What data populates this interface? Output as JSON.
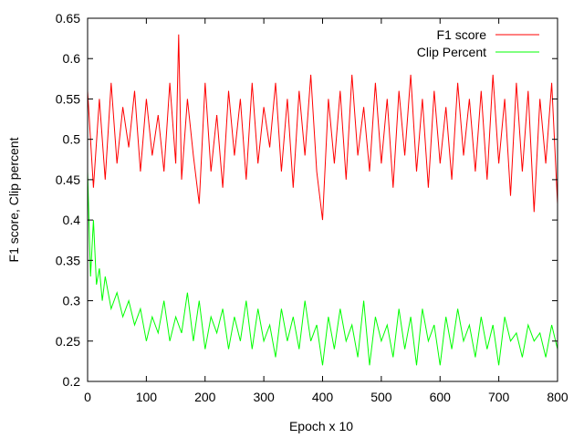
{
  "chart_data": {
    "type": "line",
    "xlabel": "Epoch x 10",
    "ylabel": "F1 score, Clip percent",
    "xlim": [
      0,
      800
    ],
    "ylim": [
      0.2,
      0.65
    ],
    "xticks": [
      0,
      100,
      200,
      300,
      400,
      500,
      600,
      700,
      800
    ],
    "yticks": [
      0.2,
      0.25,
      0.3,
      0.35,
      0.4,
      0.45,
      0.5,
      0.55,
      0.6,
      0.65
    ],
    "grid": false,
    "legend_position": "top-right",
    "series": [
      {
        "name": "F1 score",
        "color": "#ff0000",
        "x": [
          0,
          10,
          20,
          30,
          40,
          50,
          60,
          70,
          80,
          90,
          100,
          110,
          120,
          130,
          140,
          150,
          155,
          160,
          170,
          180,
          190,
          200,
          210,
          220,
          230,
          240,
          250,
          260,
          270,
          280,
          290,
          300,
          310,
          320,
          330,
          340,
          350,
          360,
          370,
          380,
          390,
          400,
          410,
          420,
          430,
          440,
          450,
          460,
          470,
          480,
          490,
          500,
          510,
          520,
          530,
          540,
          550,
          560,
          570,
          580,
          590,
          600,
          610,
          620,
          630,
          640,
          650,
          660,
          670,
          680,
          690,
          700,
          710,
          720,
          730,
          740,
          750,
          760,
          770,
          780,
          790,
          800
        ],
        "values": [
          0.56,
          0.44,
          0.55,
          0.45,
          0.57,
          0.47,
          0.54,
          0.49,
          0.56,
          0.46,
          0.55,
          0.48,
          0.53,
          0.46,
          0.57,
          0.47,
          0.63,
          0.45,
          0.55,
          0.48,
          0.42,
          0.57,
          0.46,
          0.53,
          0.44,
          0.56,
          0.48,
          0.55,
          0.45,
          0.57,
          0.47,
          0.54,
          0.49,
          0.57,
          0.46,
          0.55,
          0.44,
          0.56,
          0.48,
          0.58,
          0.46,
          0.4,
          0.55,
          0.47,
          0.56,
          0.45,
          0.58,
          0.48,
          0.54,
          0.46,
          0.57,
          0.47,
          0.55,
          0.44,
          0.56,
          0.48,
          0.58,
          0.46,
          0.55,
          0.44,
          0.56,
          0.47,
          0.54,
          0.45,
          0.57,
          0.48,
          0.55,
          0.46,
          0.56,
          0.45,
          0.58,
          0.47,
          0.55,
          0.43,
          0.57,
          0.46,
          0.56,
          0.41,
          0.55,
          0.47,
          0.57,
          0.42
        ]
      },
      {
        "name": "Clip Percent",
        "color": "#00ff00",
        "x": [
          0,
          5,
          10,
          15,
          20,
          25,
          30,
          40,
          50,
          60,
          70,
          80,
          90,
          100,
          110,
          120,
          130,
          140,
          150,
          160,
          170,
          180,
          190,
          200,
          210,
          220,
          230,
          240,
          250,
          260,
          270,
          280,
          290,
          300,
          310,
          320,
          330,
          340,
          350,
          360,
          370,
          380,
          390,
          400,
          410,
          420,
          430,
          440,
          450,
          460,
          470,
          480,
          490,
          500,
          510,
          520,
          530,
          540,
          550,
          560,
          570,
          580,
          590,
          600,
          610,
          620,
          630,
          640,
          650,
          660,
          670,
          680,
          690,
          700,
          710,
          720,
          730,
          740,
          750,
          760,
          770,
          780,
          790,
          800
        ],
        "values": [
          0.46,
          0.33,
          0.4,
          0.32,
          0.34,
          0.3,
          0.33,
          0.29,
          0.31,
          0.28,
          0.3,
          0.27,
          0.29,
          0.25,
          0.28,
          0.26,
          0.3,
          0.25,
          0.28,
          0.26,
          0.31,
          0.25,
          0.3,
          0.24,
          0.28,
          0.26,
          0.29,
          0.24,
          0.28,
          0.25,
          0.3,
          0.24,
          0.29,
          0.25,
          0.27,
          0.23,
          0.29,
          0.25,
          0.28,
          0.24,
          0.3,
          0.25,
          0.27,
          0.22,
          0.28,
          0.24,
          0.29,
          0.25,
          0.27,
          0.23,
          0.3,
          0.22,
          0.28,
          0.25,
          0.27,
          0.23,
          0.29,
          0.24,
          0.28,
          0.22,
          0.29,
          0.25,
          0.27,
          0.22,
          0.28,
          0.24,
          0.29,
          0.25,
          0.27,
          0.23,
          0.28,
          0.24,
          0.27,
          0.22,
          0.28,
          0.25,
          0.26,
          0.23,
          0.27,
          0.25,
          0.26,
          0.23,
          0.27,
          0.24
        ]
      }
    ]
  }
}
